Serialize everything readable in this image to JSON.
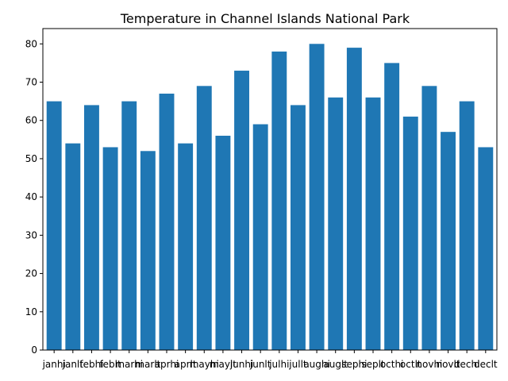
{
  "chart_data": {
    "type": "bar",
    "title": "Temperature in Channel Islands National Park",
    "xlabel": "",
    "ylabel": "",
    "categories": [
      "janhi",
      "janlt",
      "febhi",
      "feblt",
      "marhi",
      "marlt",
      "aprhi",
      "aprlt",
      "mayhi",
      "maylt",
      "junhi",
      "junlt",
      "julhi",
      "jullt",
      "aughi",
      "auglt",
      "sephi",
      "seplt",
      "octhi",
      "octlt",
      "novhi",
      "novlt",
      "dechi",
      "declt"
    ],
    "values": [
      65,
      54,
      64,
      53,
      65,
      52,
      67,
      54,
      69,
      56,
      73,
      59,
      78,
      64,
      80,
      66,
      79,
      66,
      75,
      61,
      69,
      57,
      65,
      53
    ],
    "ylim": [
      0,
      84
    ],
    "yticks": [
      0,
      10,
      20,
      30,
      40,
      50,
      60,
      70,
      80
    ],
    "bar_color": "#1f77b4",
    "grid": false,
    "legend": "none"
  }
}
